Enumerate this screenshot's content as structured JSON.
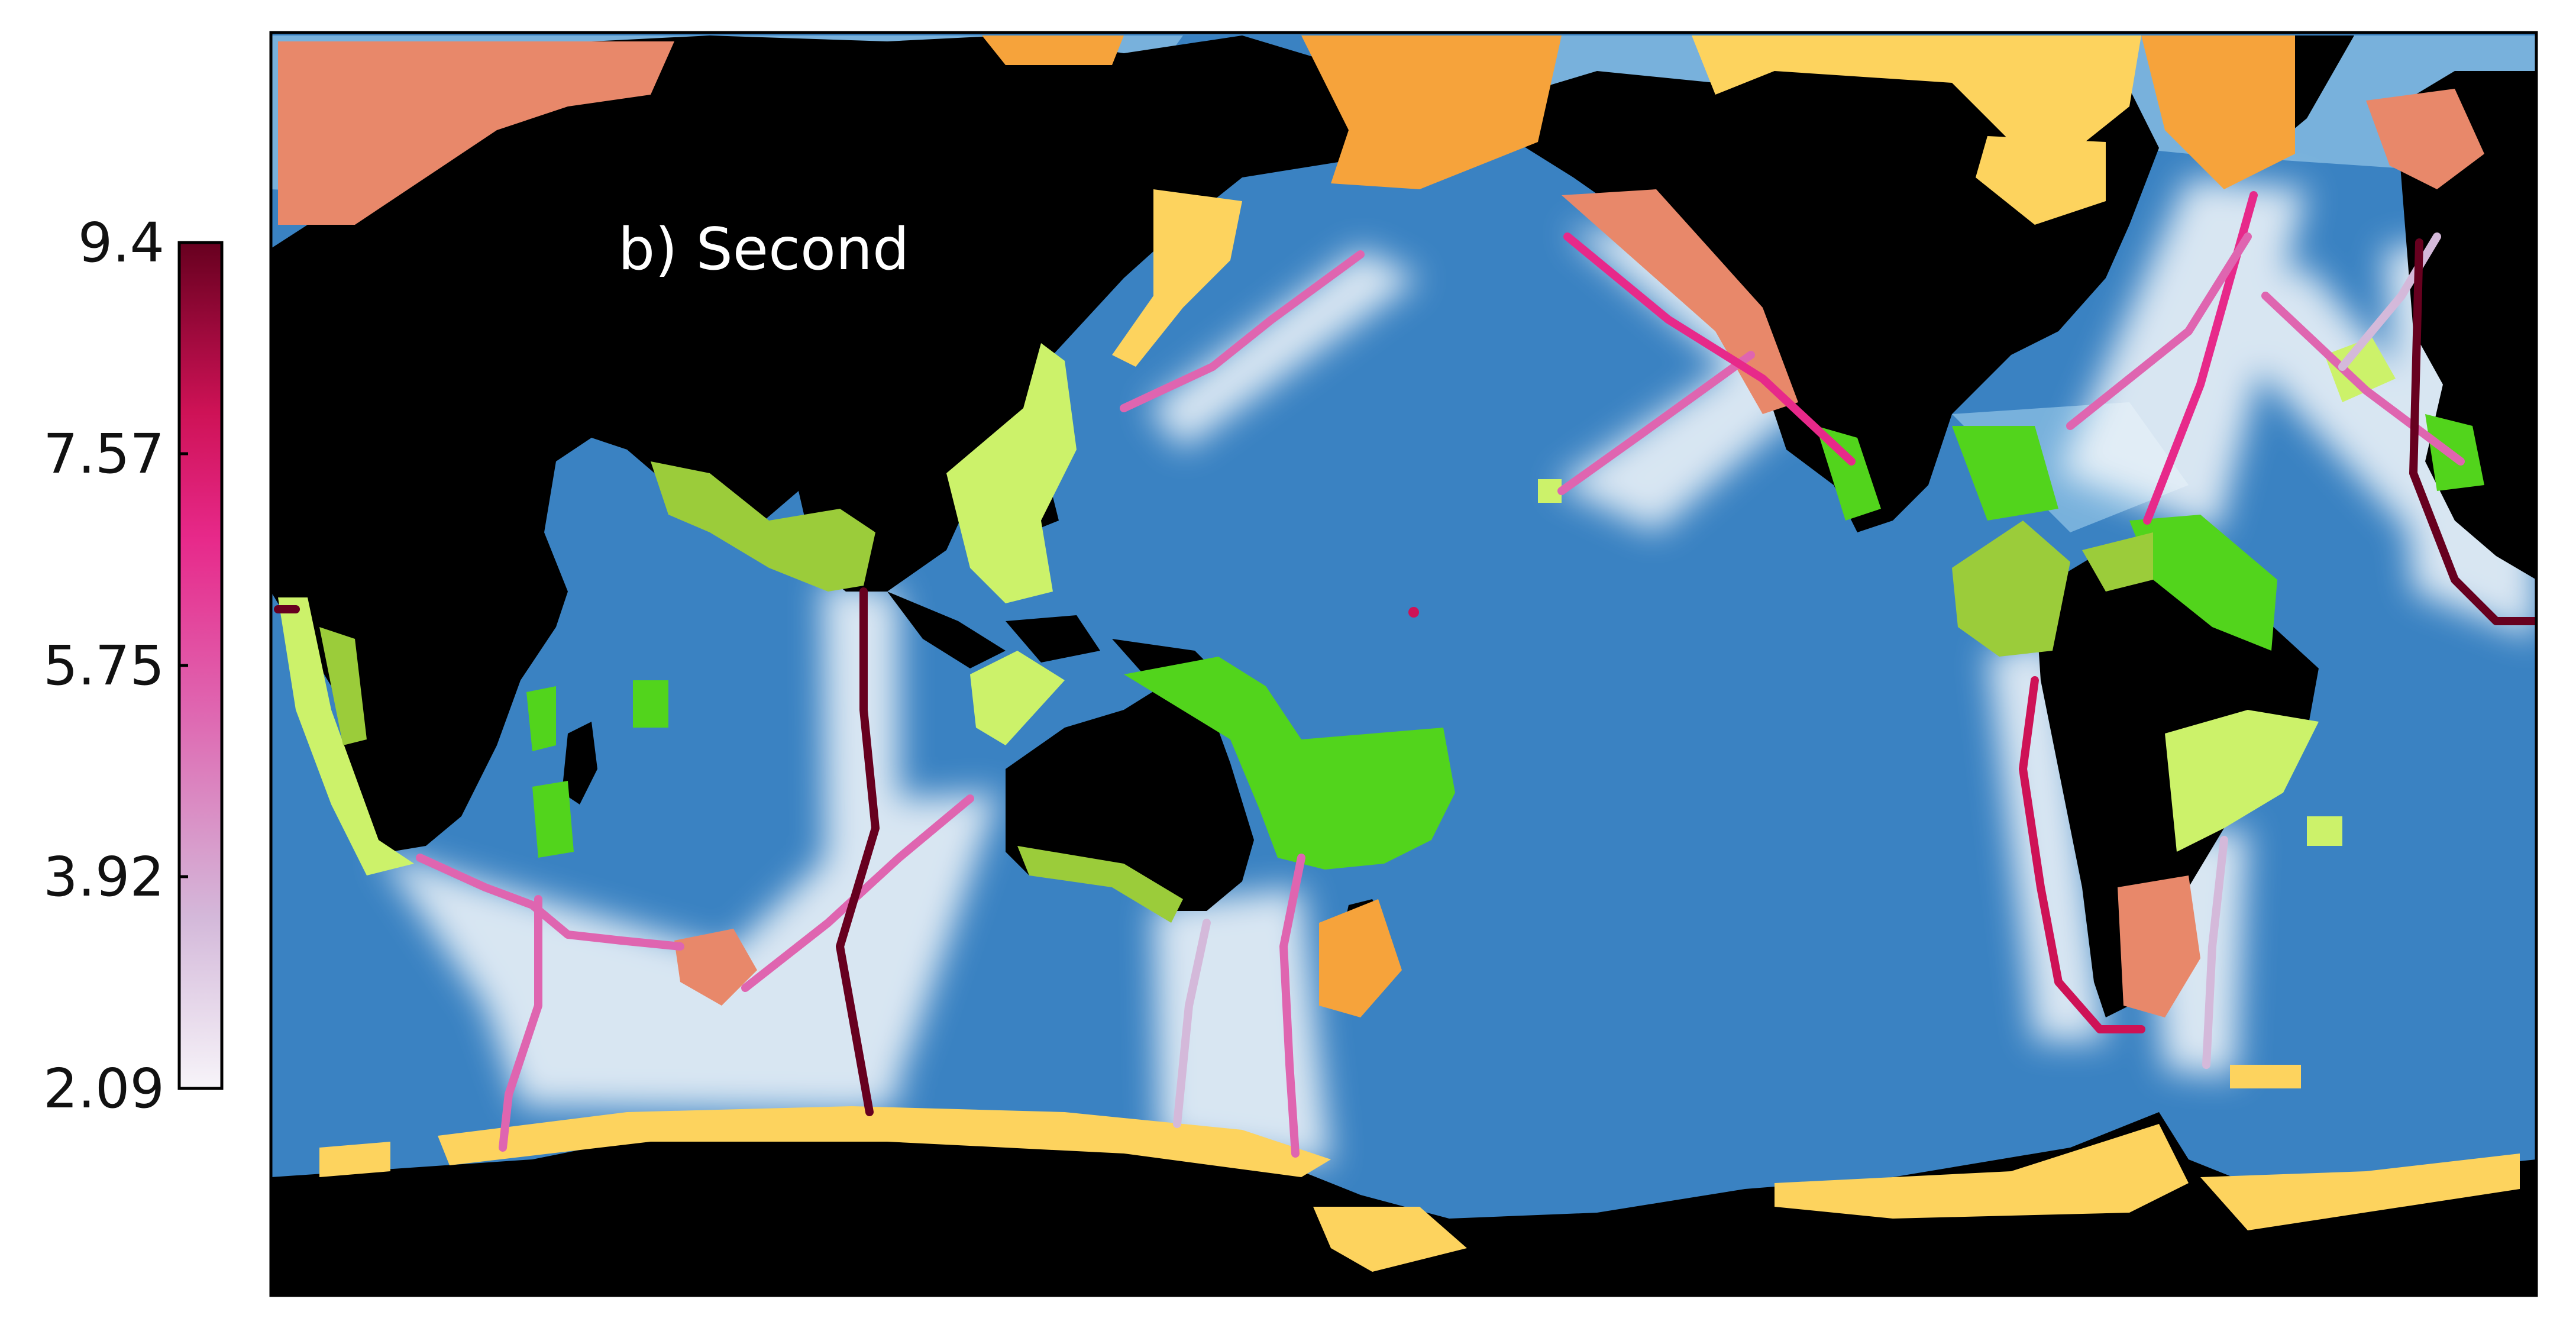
{
  "panel_label": "b) Second",
  "colorbar": {
    "ticks": [
      "9.4",
      "7.57",
      "5.75",
      "3.92",
      "2.09"
    ],
    "min": 2.09,
    "max": 9.4,
    "colors": [
      "#f7f4f9",
      "#d4b9da",
      "#df65b0",
      "#e7298a",
      "#ce1256",
      "#67001f"
    ]
  },
  "colors": {
    "land": "#000000",
    "ocean": "#3a82c2",
    "shallow_ocean": "#7fb6df",
    "region_orange": "#f6a33b",
    "region_salmon": "#e8886a",
    "region_yellow": "#fdd35e",
    "region_lightgreen": "#ccf26a",
    "region_green": "#52d41c",
    "region_olive": "#9bcc3a",
    "wake": "#f4f8fb"
  }
}
